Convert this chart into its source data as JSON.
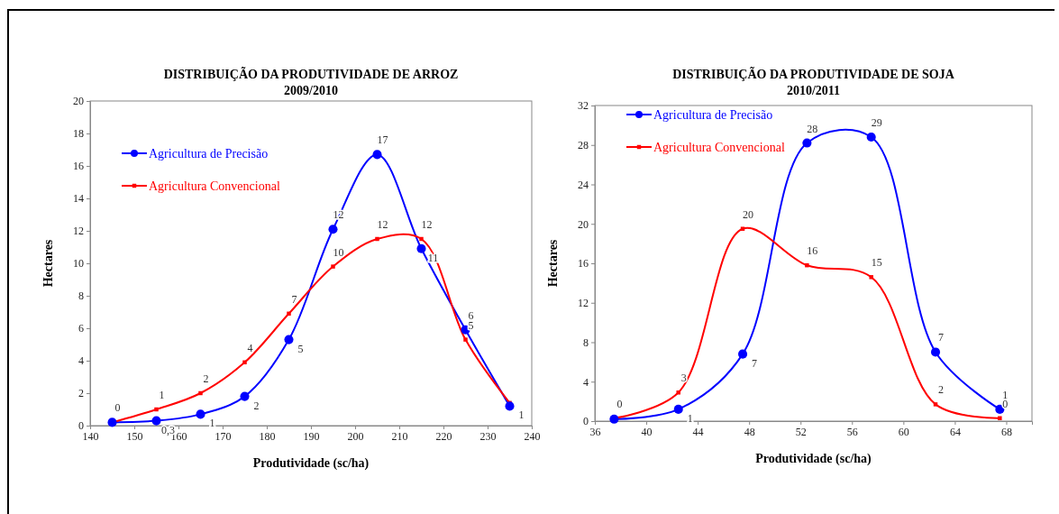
{
  "chart_data": [
    {
      "type": "line",
      "title": "DISTRIBUIÇÃO DA PRODUTIVIDADE DE ARROZ",
      "subtitle": "2009/2010",
      "xlabel": "Produtividade (sc/ha)",
      "ylabel": "Hectares",
      "x": [
        145,
        155,
        165,
        175,
        185,
        195,
        205,
        215,
        225,
        235
      ],
      "xlim": [
        140,
        240
      ],
      "xticks": [
        140,
        150,
        160,
        170,
        180,
        190,
        200,
        210,
        220,
        230,
        240
      ],
      "ylim": [
        0,
        20
      ],
      "yticks": [
        0,
        2,
        4,
        6,
        8,
        10,
        12,
        14,
        16,
        18,
        20
      ],
      "grid": false,
      "legend": "top left",
      "series": [
        {
          "name": "Agricultura de Precisão",
          "color": "#0000ff",
          "marker": "circle",
          "values": [
            0.2,
            0.3,
            0.7,
            1.8,
            5.3,
            12.1,
            16.7,
            10.9,
            5.9,
            1.2
          ],
          "value_labels": [
            null,
            "0,3",
            "1",
            "2",
            "5",
            "12",
            "17",
            "11",
            "6",
            "1"
          ]
        },
        {
          "name": "Agricultura Convencional",
          "color": "#ff0000",
          "marker": "square",
          "values": [
            0.2,
            1.0,
            2.0,
            3.9,
            6.9,
            9.8,
            11.5,
            11.5,
            5.3,
            1.4
          ],
          "value_labels": [
            "0",
            "1",
            "2",
            "4",
            "7",
            "10",
            "12",
            "12",
            "5",
            null
          ]
        }
      ]
    },
    {
      "type": "line",
      "title": "DISTRIBUIÇÃO DA PRODUTIVIDADE DE SOJA",
      "subtitle": "2010/2011",
      "xlabel": "Produtividade (sc/ha)",
      "ylabel": "Hectares",
      "x": [
        37.5,
        42.5,
        47.5,
        52.5,
        57.5,
        62.5,
        67.5
      ],
      "xlim": [
        36,
        70
      ],
      "xticks": [
        36,
        40,
        44,
        48,
        52,
        56,
        60,
        64,
        68
      ],
      "ylim": [
        0,
        32
      ],
      "yticks": [
        0,
        4,
        8,
        12,
        16,
        20,
        24,
        28,
        32
      ],
      "grid": false,
      "legend": "top left",
      "series": [
        {
          "name": "Agricultura de Precisão",
          "color": "#0000ff",
          "marker": "circle",
          "values": [
            0.2,
            1.2,
            6.8,
            28.2,
            28.8,
            7.0,
            1.2
          ],
          "value_labels": [
            null,
            "1",
            "7",
            "28",
            "29",
            "7",
            "1"
          ]
        },
        {
          "name": "Agricultura Convencional",
          "color": "#ff0000",
          "marker": "square",
          "values": [
            0.3,
            2.9,
            19.5,
            15.8,
            14.6,
            1.7,
            0.3
          ],
          "value_labels": [
            "0",
            "3",
            "20",
            "16",
            "15",
            "2",
            "0"
          ]
        }
      ]
    }
  ]
}
